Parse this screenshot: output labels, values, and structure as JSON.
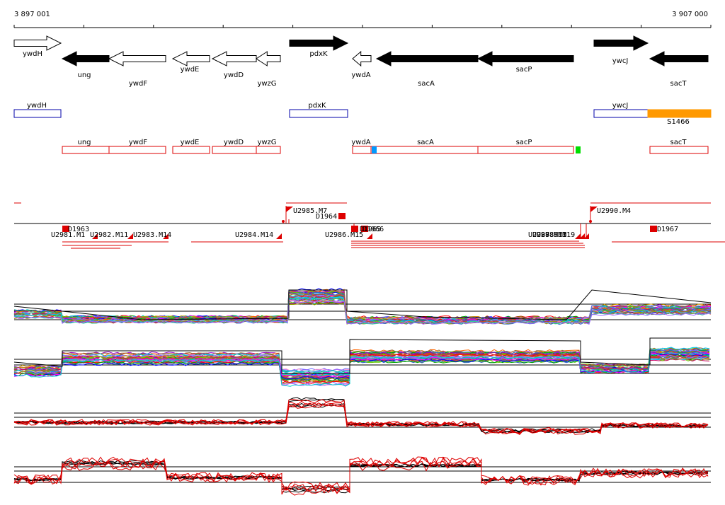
{
  "coords": {
    "start": "3 897 001",
    "end": "3 907 000"
  },
  "genes": [
    {
      "name": "ywdH",
      "strand": "+",
      "style": "open",
      "label_pos": "below"
    },
    {
      "name": "ung",
      "strand": "-",
      "style": "filled",
      "label_pos": "below"
    },
    {
      "name": "ywdF",
      "strand": "-",
      "style": "open",
      "label_pos": "below"
    },
    {
      "name": "ywdE",
      "strand": "-",
      "style": "open",
      "label_pos": "below"
    },
    {
      "name": "ywdD",
      "strand": "-",
      "style": "open",
      "label_pos": "below"
    },
    {
      "name": "ywzG",
      "strand": "-",
      "style": "open",
      "label_pos": "below"
    },
    {
      "name": "pdxK",
      "strand": "+",
      "style": "filled",
      "label_pos": "below"
    },
    {
      "name": "ywdA",
      "strand": "-",
      "style": "open",
      "label_pos": "below"
    },
    {
      "name": "sacA",
      "strand": "-",
      "style": "filled",
      "label_pos": "below"
    },
    {
      "name": "sacP",
      "strand": "-",
      "style": "filled",
      "label_pos": "below"
    },
    {
      "name": "ywcJ",
      "strand": "+",
      "style": "filled",
      "label_pos": "below"
    },
    {
      "name": "sacT",
      "strand": "-",
      "style": "filled",
      "label_pos": "below"
    }
  ],
  "plus_track": [
    {
      "label": "ywdH",
      "color": "#0000aa",
      "fill": "none"
    },
    {
      "label": "pdxK",
      "color": "#0000aa",
      "fill": "none"
    },
    {
      "label": "ywcJ",
      "color": "#0000aa",
      "fill": "none"
    },
    {
      "label": "S1466",
      "color": "#ff9900",
      "fill": "#ff9900"
    }
  ],
  "minus_track": [
    {
      "label": "ung",
      "color": "#dd0000"
    },
    {
      "label": "ywdF",
      "color": "#dd0000"
    },
    {
      "label": "ywdE",
      "color": "#dd0000"
    },
    {
      "label": "ywdD",
      "color": "#dd0000"
    },
    {
      "label": "ywzG",
      "color": "#dd0000"
    },
    {
      "label": "ywdA",
      "color": "#dd0000"
    },
    {
      "label": "sacA",
      "color": "#dd0000"
    },
    {
      "label": "sacP",
      "color": "#dd0000"
    },
    {
      "label": "sacT",
      "color": "#dd0000"
    }
  ],
  "minus_track_marks": [
    {
      "color": "#0099ff"
    },
    {
      "color": "#00dd00"
    }
  ],
  "features": [
    {
      "label": "U2985.M7"
    },
    {
      "label": "D1964"
    },
    {
      "label": "U2990.M4"
    },
    {
      "label": "D1963"
    },
    {
      "label": "U2981.M1"
    },
    {
      "label": "U2982.M11"
    },
    {
      "label": "U2983.M14"
    },
    {
      "label": "U2984.M14"
    },
    {
      "label": "U2986.M15"
    },
    {
      "label": "D1965"
    },
    {
      "label": "D1966"
    },
    {
      "label": "U2987.M13"
    },
    {
      "label": "U2988.M1"
    },
    {
      "label": "U2989.M19"
    },
    {
      "label": "D1967"
    }
  ],
  "colors": {
    "gene_fill": "#000000",
    "track_red": "#dd0000",
    "track_blue": "#0000aa",
    "orange": "#ff9900"
  }
}
